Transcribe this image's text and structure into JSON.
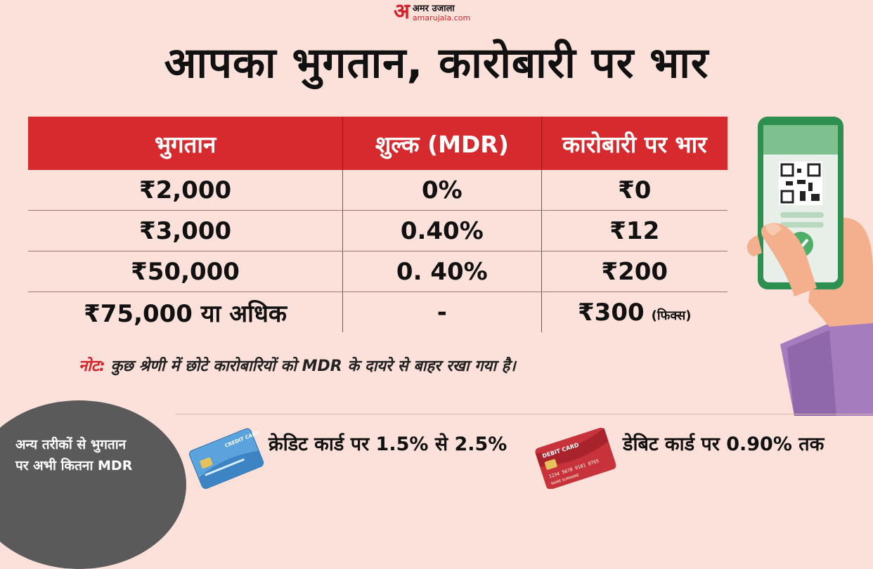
{
  "logo": {
    "mark": "अ",
    "name": "अमर उजाला",
    "url": "amarujala.com"
  },
  "title": "आपका भुगतान, कारोबारी पर भार",
  "table": {
    "headers": [
      "भुगतान",
      "शुल्क (MDR)",
      "कारोबारी पर भार"
    ],
    "rows": [
      {
        "payment": "₹2,000",
        "fee": "0%",
        "burden": "₹0",
        "burden_note": ""
      },
      {
        "payment": "₹3,000",
        "fee": "0.40%",
        "burden": "₹12",
        "burden_note": ""
      },
      {
        "payment": "₹50,000",
        "fee": "0. 40%",
        "burden": "₹200",
        "burden_note": ""
      },
      {
        "payment": "₹75,000 या अधिक",
        "fee": "-",
        "burden": "₹300",
        "burden_note": "(फिक्स)"
      }
    ]
  },
  "note": {
    "label": "नोट:",
    "text": "कुछ श्रेणी में छोटे कारोबारियों को MDR के दायरे से बाहर रखा गया है।"
  },
  "footer": {
    "bubble_line1": "अन्य तरीकों से भुगतान",
    "bubble_line2": "पर अभी कितना MDR",
    "credit": "क्रेडिट कार्ड पर 1.5% से 2.5%",
    "debit": "डेबिट कार्ड पर 0.90% तक",
    "credit_card_label": "CREDIT CARD",
    "debit_card_label": "DEBIT CARD",
    "debit_card_number": "1234 5678 9101 8765",
    "debit_card_name": "NAME SURNAME"
  },
  "colors": {
    "accent": "#d62a2e",
    "background": "#fbe1d9"
  },
  "icons": [
    "phone-qr-payment-icon",
    "credit-card-icon",
    "debit-card-icon"
  ]
}
